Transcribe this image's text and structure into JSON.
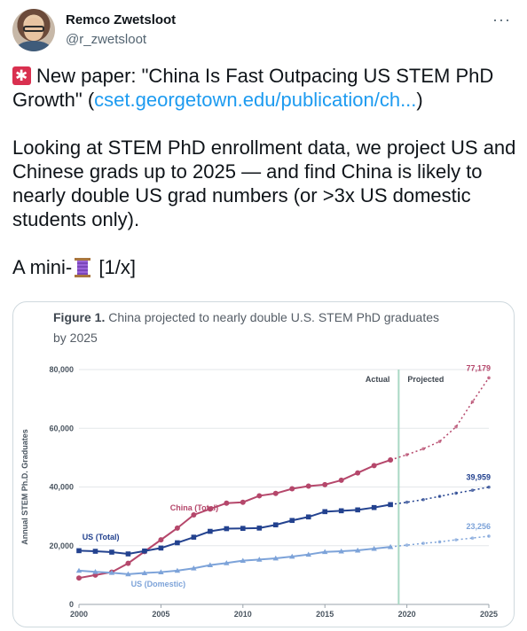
{
  "tweet": {
    "author_name": "Remco Zwetsloot",
    "author_handle": "@r_zwetsloot",
    "more_icon": "more-horizontal-icon",
    "line1_prefix": "New paper: \"China Is Fast Outpacing US STEM PhD Growth\" (",
    "line1_link": "cset.georgetown.edu/publication/ch...",
    "line1_suffix": ")",
    "paragraph2": "Looking at STEM PhD enrollment data, we project US and Chinese grads up to 2025 — and find China is likely to nearly double US grad numbers (or >3x US domestic students only).",
    "line3_prefix": "A mini-",
    "line3_suffix": " [1/x]",
    "colors": {
      "link": "#1d9bf0",
      "china": "#b5476b",
      "us_total": "#23428f",
      "us_domestic": "#7da3d9",
      "divider": "#a9d8c4"
    }
  },
  "chart_data": {
    "type": "line",
    "title_bold": "Figure 1.",
    "title_rest": "China projected to nearly double U.S. STEM PhD graduates by 2025",
    "ylabel": "Annual STEM Ph.D. Graduates",
    "xlabel": "",
    "yticks": [
      "0",
      "20,000",
      "40,000",
      "60,000",
      "80,000"
    ],
    "xticks": [
      "2000",
      "2005",
      "2010",
      "2015",
      "2020",
      "2025"
    ],
    "ylim": [
      0,
      80000
    ],
    "xlim": [
      2000,
      2025
    ],
    "actual_label": "Actual",
    "projected_label": "Projected",
    "divider_year": 2019.5,
    "series": [
      {
        "name": "China (Total)",
        "end_label": "77,179",
        "color": "#b5476b",
        "actual": [
          [
            2000,
            9000
          ],
          [
            2001,
            10000
          ],
          [
            2002,
            11000
          ],
          [
            2003,
            14000
          ],
          [
            2004,
            18000
          ],
          [
            2005,
            22000
          ],
          [
            2006,
            26000
          ],
          [
            2007,
            30500
          ],
          [
            2008,
            32500
          ],
          [
            2009,
            34500
          ],
          [
            2010,
            34800
          ],
          [
            2011,
            37000
          ],
          [
            2012,
            37800
          ],
          [
            2013,
            39400
          ],
          [
            2014,
            40300
          ],
          [
            2015,
            40800
          ],
          [
            2016,
            42300
          ],
          [
            2017,
            44800
          ],
          [
            2018,
            47300
          ],
          [
            2019,
            49200
          ]
        ],
        "projected": [
          [
            2019,
            49200
          ],
          [
            2020,
            51000
          ],
          [
            2021,
            53000
          ],
          [
            2022,
            55500
          ],
          [
            2023,
            60500
          ],
          [
            2024,
            69000
          ],
          [
            2025,
            77179
          ]
        ]
      },
      {
        "name": "US (Total)",
        "end_label": "39,959",
        "color": "#23428f",
        "actual": [
          [
            2000,
            18300
          ],
          [
            2001,
            18100
          ],
          [
            2002,
            17800
          ],
          [
            2003,
            17200
          ],
          [
            2004,
            18200
          ],
          [
            2005,
            19200
          ],
          [
            2006,
            21000
          ],
          [
            2007,
            22900
          ],
          [
            2008,
            24900
          ],
          [
            2009,
            25800
          ],
          [
            2010,
            25900
          ],
          [
            2011,
            26000
          ],
          [
            2012,
            27100
          ],
          [
            2013,
            28600
          ],
          [
            2014,
            29800
          ],
          [
            2015,
            31600
          ],
          [
            2016,
            31900
          ],
          [
            2017,
            32200
          ],
          [
            2018,
            33000
          ],
          [
            2019,
            34000
          ]
        ],
        "projected": [
          [
            2019,
            34000
          ],
          [
            2020,
            34800
          ],
          [
            2021,
            35700
          ],
          [
            2022,
            36800
          ],
          [
            2023,
            37900
          ],
          [
            2024,
            38900
          ],
          [
            2025,
            39959
          ]
        ]
      },
      {
        "name": "US (Domestic)",
        "end_label": "23,256",
        "color": "#7da3d9",
        "actual": [
          [
            2000,
            11500
          ],
          [
            2001,
            11100
          ],
          [
            2002,
            10800
          ],
          [
            2003,
            10300
          ],
          [
            2004,
            10700
          ],
          [
            2005,
            11000
          ],
          [
            2006,
            11500
          ],
          [
            2007,
            12300
          ],
          [
            2008,
            13400
          ],
          [
            2009,
            14100
          ],
          [
            2010,
            14900
          ],
          [
            2011,
            15300
          ],
          [
            2012,
            15700
          ],
          [
            2013,
            16300
          ],
          [
            2014,
            17000
          ],
          [
            2015,
            17900
          ],
          [
            2016,
            18100
          ],
          [
            2017,
            18400
          ],
          [
            2018,
            19000
          ],
          [
            2019,
            19600
          ]
        ],
        "projected": [
          [
            2019,
            19600
          ],
          [
            2020,
            20200
          ],
          [
            2021,
            20800
          ],
          [
            2022,
            21300
          ],
          [
            2023,
            22000
          ],
          [
            2024,
            22600
          ],
          [
            2025,
            23256
          ]
        ]
      }
    ]
  }
}
